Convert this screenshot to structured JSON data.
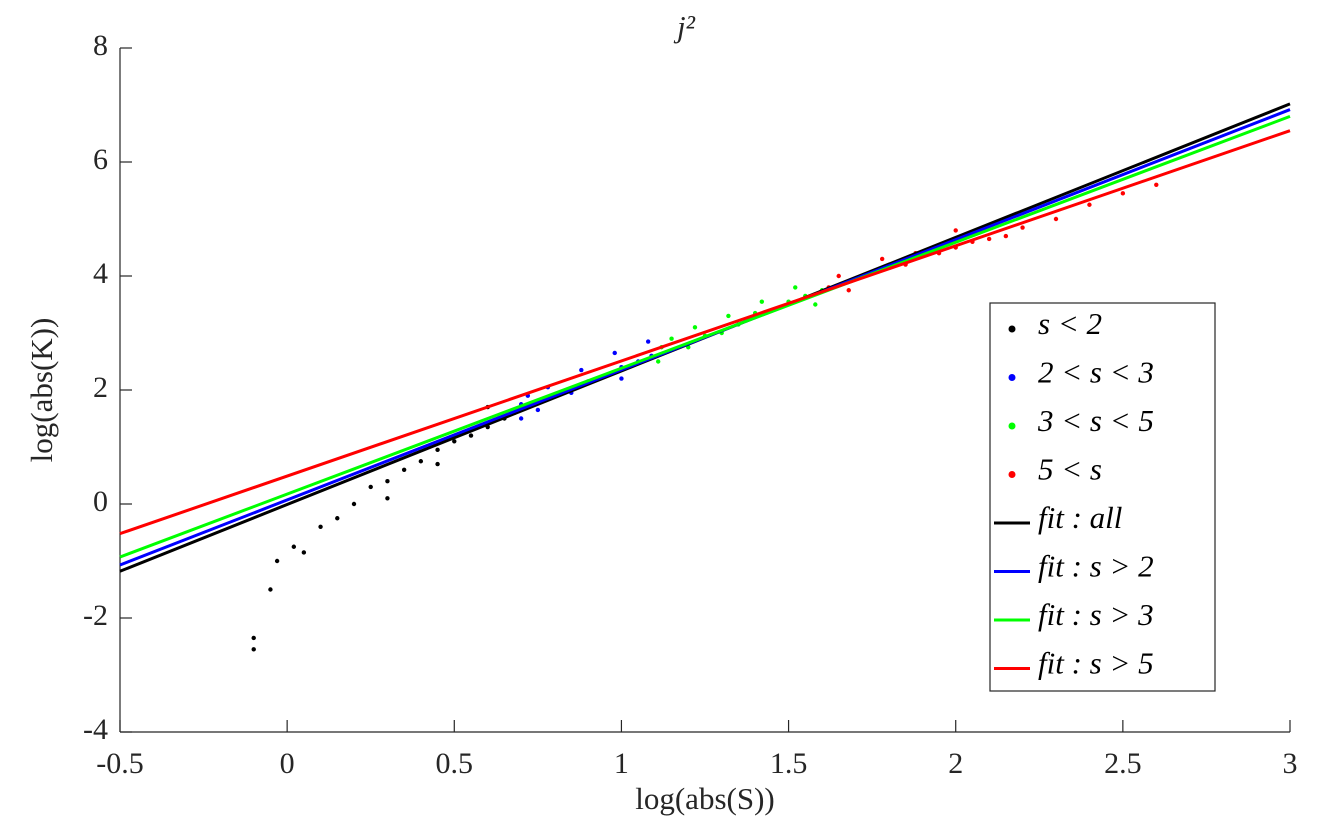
{
  "chart_data": {
    "type": "scatter",
    "title": "j²",
    "x_label": "log(abs(S))",
    "y_label": "log(abs(K))",
    "xlim": [
      -0.5,
      3
    ],
    "ylim": [
      -4,
      8
    ],
    "xticks": [
      -0.5,
      0,
      0.5,
      1,
      1.5,
      2,
      2.5,
      3
    ],
    "yticks": [
      -4,
      -2,
      0,
      2,
      4,
      6,
      8
    ],
    "legend": "right",
    "series": [
      {
        "name": "s < 2",
        "type": "scatter",
        "color": "#000000",
        "x": [
          -0.1,
          -0.1,
          -0.05,
          -0.03,
          0.02,
          0.05,
          0.1,
          0.15,
          0.2,
          0.25,
          0.3,
          0.35,
          0.4,
          0.45,
          0.5,
          0.55,
          0.6,
          0.65,
          0.68,
          0.3,
          0.45,
          0.6
        ],
        "values": [
          -2.35,
          -2.55,
          -1.5,
          -1.0,
          -0.75,
          -0.85,
          -0.4,
          -0.25,
          0.0,
          0.3,
          0.4,
          0.6,
          0.75,
          0.95,
          1.1,
          1.2,
          1.35,
          1.5,
          1.6,
          0.1,
          0.7,
          1.7
        ]
      },
      {
        "name": "2 < s < 3",
        "type": "scatter",
        "color": "#0000ff",
        "x": [
          0.7,
          0.72,
          0.75,
          0.8,
          0.85,
          0.9,
          0.95,
          1.0,
          1.05,
          1.09,
          0.78,
          0.88,
          0.98,
          1.08,
          0.7,
          1.0
        ],
        "values": [
          1.5,
          1.9,
          1.65,
          1.9,
          1.95,
          2.15,
          2.25,
          2.4,
          2.5,
          2.6,
          2.05,
          2.35,
          2.65,
          2.85,
          1.75,
          2.2
        ]
      },
      {
        "name": "3 < s < 5",
        "type": "scatter",
        "color": "#00ff00",
        "x": [
          1.11,
          1.15,
          1.2,
          1.25,
          1.3,
          1.35,
          1.4,
          1.45,
          1.5,
          1.55,
          1.6,
          1.12,
          1.22,
          1.32,
          1.42,
          1.52,
          1.58
        ],
        "values": [
          2.5,
          2.9,
          2.75,
          2.95,
          3.0,
          3.15,
          3.35,
          3.4,
          3.55,
          3.65,
          3.75,
          2.75,
          3.1,
          3.3,
          3.55,
          3.8,
          3.5
        ]
      },
      {
        "name": "5 < s",
        "type": "scatter",
        "color": "#ff0000",
        "x": [
          1.62,
          1.65,
          1.7,
          1.75,
          1.8,
          1.85,
          1.9,
          1.95,
          2.0,
          2.05,
          2.1,
          2.2,
          2.3,
          2.4,
          2.5,
          2.6,
          1.68,
          1.78,
          1.88,
          2.0,
          2.15
        ],
        "values": [
          3.8,
          4.0,
          3.95,
          4.05,
          4.15,
          4.2,
          4.35,
          4.4,
          4.5,
          4.6,
          4.65,
          4.85,
          5.0,
          5.25,
          5.45,
          5.6,
          3.75,
          4.3,
          4.4,
          4.8,
          4.7
        ]
      },
      {
        "name": "fit : all",
        "type": "line",
        "color": "#000000",
        "x": [
          -0.5,
          3
        ],
        "values": [
          -1.18,
          7.02
        ]
      },
      {
        "name": "fit : s > 2",
        "type": "line",
        "color": "#0000ff",
        "x": [
          -0.5,
          3
        ],
        "values": [
          -1.07,
          6.92
        ]
      },
      {
        "name": "fit : s > 3",
        "type": "line",
        "color": "#00ff00",
        "x": [
          -0.5,
          3
        ],
        "values": [
          -0.93,
          6.8
        ]
      },
      {
        "name": "fit : s > 5",
        "type": "line",
        "color": "#ff0000",
        "x": [
          -0.5,
          3
        ],
        "values": [
          -0.52,
          6.55
        ]
      }
    ]
  }
}
